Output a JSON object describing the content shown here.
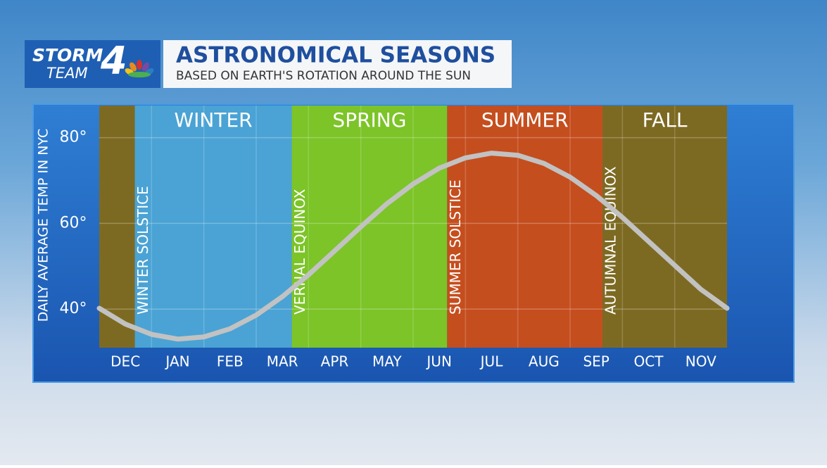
{
  "logo": {
    "line1": "STORM",
    "line2": "TEAM",
    "number": "4"
  },
  "chart_data": {
    "type": "line",
    "title": "ASTRONOMICAL SEASONS",
    "subtitle": "BASED ON EARTH'S ROTATION AROUND THE SUN",
    "y_label": "DAILY AVERAGE TEMP IN NYC",
    "xlim": [
      0,
      12
    ],
    "xticks": [
      {
        "value": 0.5,
        "label": "DEC"
      },
      {
        "value": 1.5,
        "label": "JAN"
      },
      {
        "value": 2.5,
        "label": "FEB"
      },
      {
        "value": 3.5,
        "label": "MAR"
      },
      {
        "value": 4.5,
        "label": "APR"
      },
      {
        "value": 5.5,
        "label": "MAY"
      },
      {
        "value": 6.5,
        "label": "JUN"
      },
      {
        "value": 7.5,
        "label": "JUL"
      },
      {
        "value": 8.5,
        "label": "AUG"
      },
      {
        "value": 9.5,
        "label": "SEP"
      },
      {
        "value": 10.5,
        "label": "OCT"
      },
      {
        "value": 11.5,
        "label": "NOV"
      }
    ],
    "ylim": [
      31,
      87.5
    ],
    "yticks": [
      {
        "value": 40,
        "label": "40°"
      },
      {
        "value": 60,
        "label": "60°"
      },
      {
        "value": 80,
        "label": "80°"
      }
    ],
    "grid": true,
    "seasons": [
      {
        "name": "WINTER",
        "color": "#4aa3d4",
        "spans": [
          [
            0.68,
            3.68
          ]
        ]
      },
      {
        "name": "SPRING",
        "color": "#7cc428",
        "spans": [
          [
            3.68,
            6.65
          ]
        ]
      },
      {
        "name": "SUMMER",
        "color": "#c54e1e",
        "spans": [
          [
            6.65,
            9.62
          ]
        ]
      },
      {
        "name": "FALL",
        "color": "#7d6a22",
        "spans": [
          [
            9.62,
            12
          ],
          [
            0,
            0.68
          ]
        ]
      }
    ],
    "events": [
      {
        "label": "WINTER SOLSTICE",
        "x": 0.68
      },
      {
        "label": "VERNAL EQUINOX",
        "x": 3.68
      },
      {
        "label": "SUMMER SOLSTICE",
        "x": 6.65
      },
      {
        "label": "AUTUMNAL EQUINOX",
        "x": 9.62
      }
    ],
    "series": [
      {
        "color": "#c2c2c2",
        "x": [
          0,
          0.5,
          1,
          1.5,
          2,
          2.5,
          3,
          3.5,
          4,
          4.5,
          5,
          5.5,
          6,
          6.5,
          7,
          7.5,
          8,
          8.5,
          9,
          9.5,
          10,
          10.5,
          11,
          11.5,
          12
        ],
        "values": [
          40.2,
          36.5,
          34.1,
          33.0,
          33.5,
          35.4,
          38.6,
          42.9,
          48.0,
          53.6,
          59.2,
          64.6,
          69.2,
          72.9,
          75.3,
          76.4,
          75.9,
          74.0,
          70.8,
          66.5,
          61.4,
          55.8,
          50.2,
          44.6,
          40.2
        ]
      }
    ]
  }
}
